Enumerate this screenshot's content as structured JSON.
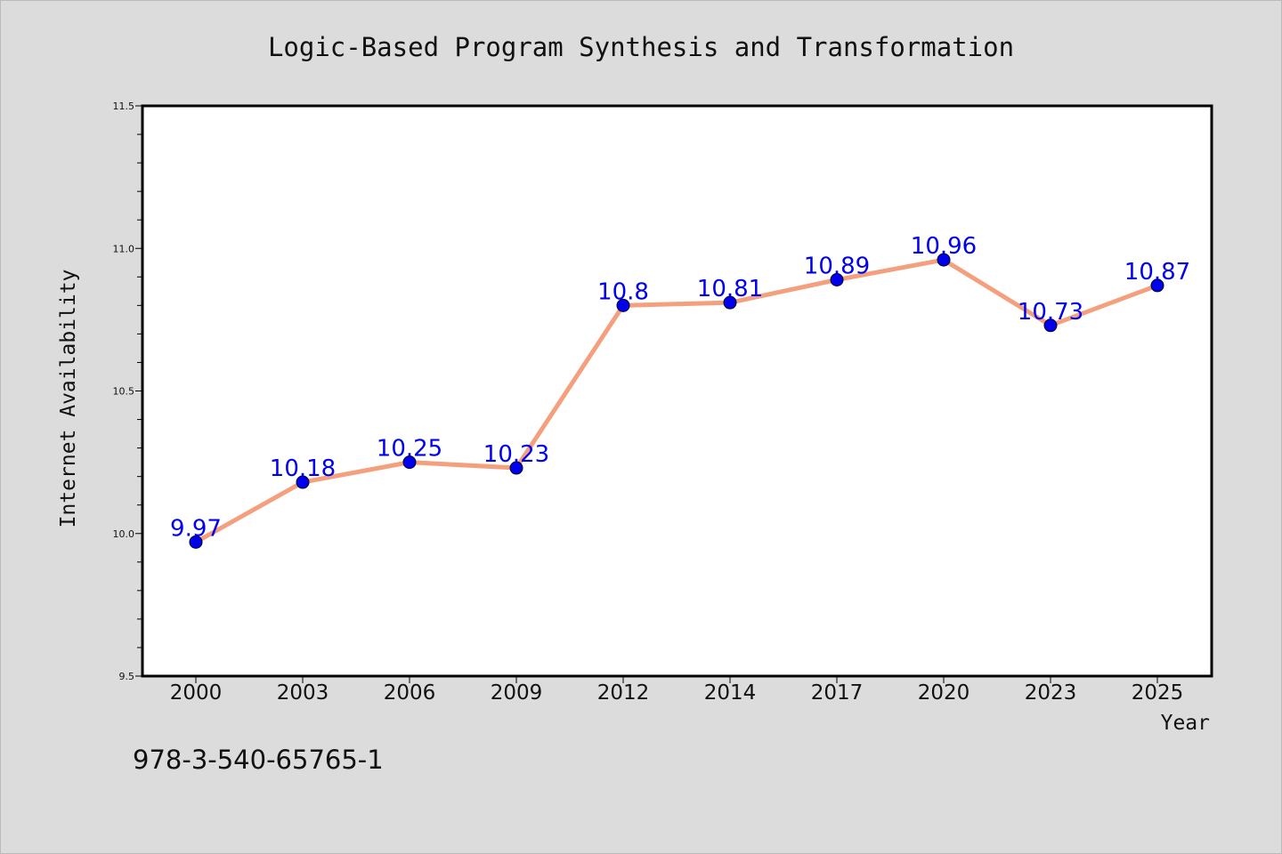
{
  "chart_data": {
    "type": "line",
    "title": "Logic-Based Program Synthesis and Transformation",
    "xlabel": "Year",
    "ylabel": "Internet Availability",
    "categories": [
      "2000",
      "2003",
      "2006",
      "2009",
      "2012",
      "2014",
      "2017",
      "2020",
      "2023",
      "2025"
    ],
    "series": [
      {
        "values": [
          9.97,
          10.18,
          10.25,
          10.23,
          10.8,
          10.81,
          10.89,
          10.96,
          10.73,
          10.87
        ],
        "data_labels": [
          "9.97",
          "10.18",
          "10.25",
          "10.23",
          "10.8",
          "10.81",
          "10.89",
          "10.96",
          "10.73",
          "10.87"
        ],
        "line_color": "#f4a07e",
        "marker_color": "#0000ee",
        "label_color": "#0000ee"
      }
    ],
    "ylim": [
      9.5,
      11.5
    ],
    "yticks": [
      "9.5",
      "10.0",
      "10.5",
      "11.0",
      "11.5"
    ],
    "grid": false,
    "legend": "none"
  },
  "annotation": "978-3-540-65765-1",
  "colors": {
    "background": "#dcdcdc",
    "plot_area": "#ffffff",
    "axis": "#000000",
    "text": "#111111"
  }
}
